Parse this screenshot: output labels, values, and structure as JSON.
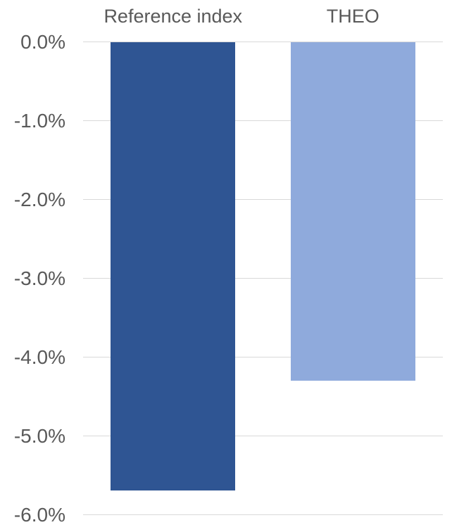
{
  "chart": {
    "background_color": "#FFFFFF",
    "text_color": "#595959",
    "gridline_color": "#D9D9D9"
  },
  "chart_data": {
    "type": "bar",
    "title": "",
    "xlabel": "",
    "ylabel": "",
    "categories": [
      "Reference index",
      "THEO"
    ],
    "values": [
      -5.7,
      -4.3
    ],
    "value_unit": "%",
    "series_colors": [
      "#2F5593",
      "#8FAADC"
    ],
    "ylim": [
      -6,
      0
    ],
    "ytick_values": [
      0,
      -1,
      -2,
      -3,
      -4,
      -5,
      -6
    ],
    "ytick_labels": [
      "0.0%",
      "-1.0%",
      "-2.0%",
      "-3.0%",
      "-4.0%",
      "-5.0%",
      "-6.0%"
    ],
    "grid": true,
    "legend_position": "none",
    "category_labels_position": "top"
  }
}
